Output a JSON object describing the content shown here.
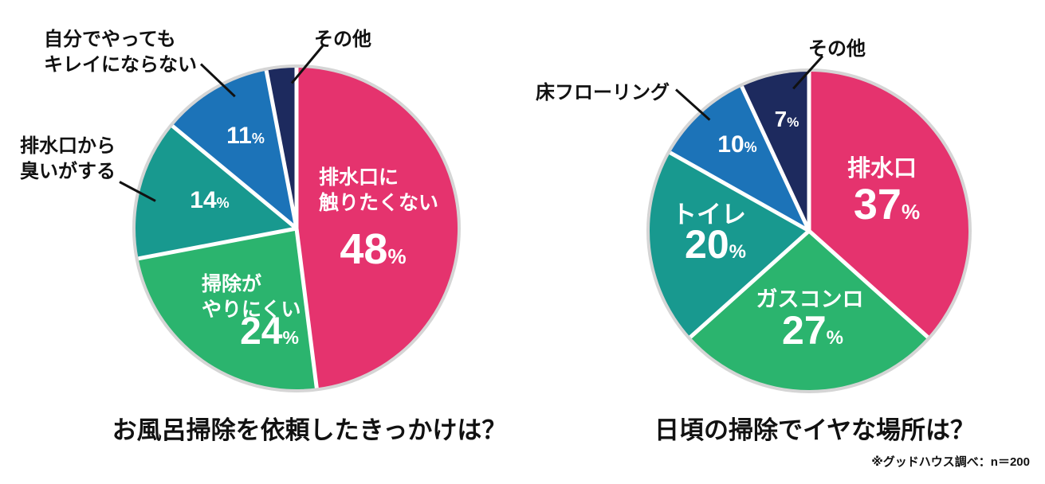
{
  "page": {
    "background": "#FFFFFF"
  },
  "units": {
    "percent": "%"
  },
  "palette": {
    "pink": "#E5336E",
    "green": "#2BB46E",
    "teal": "#18998F",
    "blue": "#1C73B8",
    "navy": "#1D2A5E",
    "ring": "#D5D5D5",
    "gap": "#FFFFFF",
    "text_dark": "#111111",
    "text_light": "#FFFFFF"
  },
  "footer": {
    "note": "※グッドハウス調べ：n＝200"
  },
  "chart_data": [
    {
      "type": "pie",
      "title": "お風呂掃除を依頼したきっかけは？",
      "start_angle_deg": 0,
      "direction": "clockwise",
      "legend": "none",
      "slices": [
        {
          "label": "排水口に触りたくない",
          "label_lines": [
            "排水口に",
            "触りたくない"
          ],
          "value": 48,
          "pct": "48",
          "color": "#E5336E",
          "label_placement": "inside"
        },
        {
          "label": "掃除がやりにくい",
          "label_lines": [
            "掃除が",
            "やりにくい"
          ],
          "value": 24,
          "pct": "24",
          "color": "#2BB46E",
          "label_placement": "inside"
        },
        {
          "label": "排水口から臭いがする",
          "label_lines": [
            "排水口から",
            "臭いがする"
          ],
          "value": 14,
          "pct": "14",
          "color": "#18998F",
          "label_placement": "callout"
        },
        {
          "label": "自分でやってもキレイにならない",
          "label_lines": [
            "自分でやっても",
            "キレイにならない"
          ],
          "value": 11,
          "pct": "11",
          "color": "#1C73B8",
          "label_placement": "callout"
        },
        {
          "label": "その他",
          "label_lines": [
            "その他"
          ],
          "value": 3,
          "pct": null,
          "color": "#1D2A5E",
          "label_placement": "callout"
        }
      ]
    },
    {
      "type": "pie",
      "title": "日頃の掃除でイヤな場所は？",
      "start_angle_deg": 0,
      "direction": "clockwise",
      "legend": "none",
      "slices": [
        {
          "label": "排水口",
          "label_lines": [
            "排水口"
          ],
          "value": 37,
          "pct": "37",
          "color": "#E5336E",
          "label_placement": "inside"
        },
        {
          "label": "ガスコンロ",
          "label_lines": [
            "ガスコンロ"
          ],
          "value": 27,
          "pct": "27",
          "color": "#2BB46E",
          "label_placement": "inside"
        },
        {
          "label": "トイレ",
          "label_lines": [
            "トイレ"
          ],
          "value": 20,
          "pct": "20",
          "color": "#18998F",
          "label_placement": "inside"
        },
        {
          "label": "床フローリング",
          "label_lines": [
            "床フローリング"
          ],
          "value": 10,
          "pct": "10",
          "color": "#1C73B8",
          "label_placement": "callout"
        },
        {
          "label": "その他",
          "label_lines": [
            "その他"
          ],
          "value": 7,
          "pct": "7",
          "color": "#1D2A5E",
          "label_placement": "inside"
        }
      ]
    }
  ]
}
